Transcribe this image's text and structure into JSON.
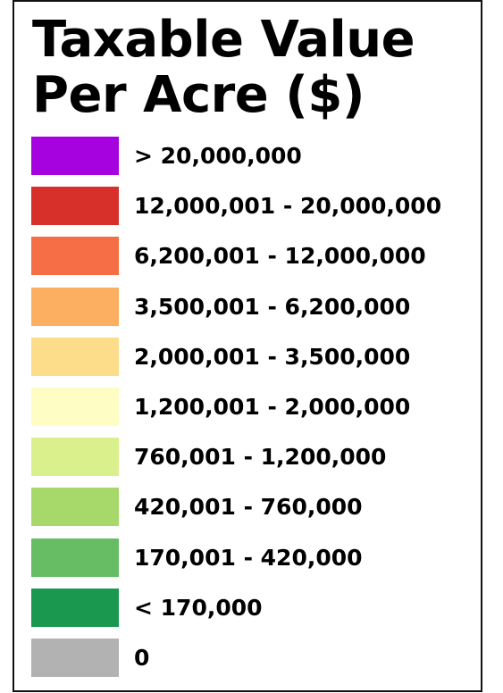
{
  "legend": {
    "title_lines": [
      "Taxable Value",
      "Per Acre ($)"
    ],
    "items": [
      {
        "label": "> 20,000,000",
        "color": "#a602e0"
      },
      {
        "label": "12,000,001 - 20,000,000",
        "color": "#d7302b"
      },
      {
        "label": "6,200,001 - 12,000,000",
        "color": "#f56e45"
      },
      {
        "label": "3,500,001 - 6,200,000",
        "color": "#fcae61"
      },
      {
        "label": "2,000,001 - 3,500,000",
        "color": "#fedd8a"
      },
      {
        "label": "1,200,001 - 2,000,000",
        "color": "#fefec4"
      },
      {
        "label": "760,001 - 1,200,000",
        "color": "#d9f08c"
      },
      {
        "label": "420,001 - 760,000",
        "color": "#a6d96a"
      },
      {
        "label": "170,001 - 420,000",
        "color": "#66bd63"
      },
      {
        "label": "< 170,000",
        "color": "#1a9850"
      },
      {
        "label": "0",
        "color": "#b2b2b2"
      }
    ]
  }
}
